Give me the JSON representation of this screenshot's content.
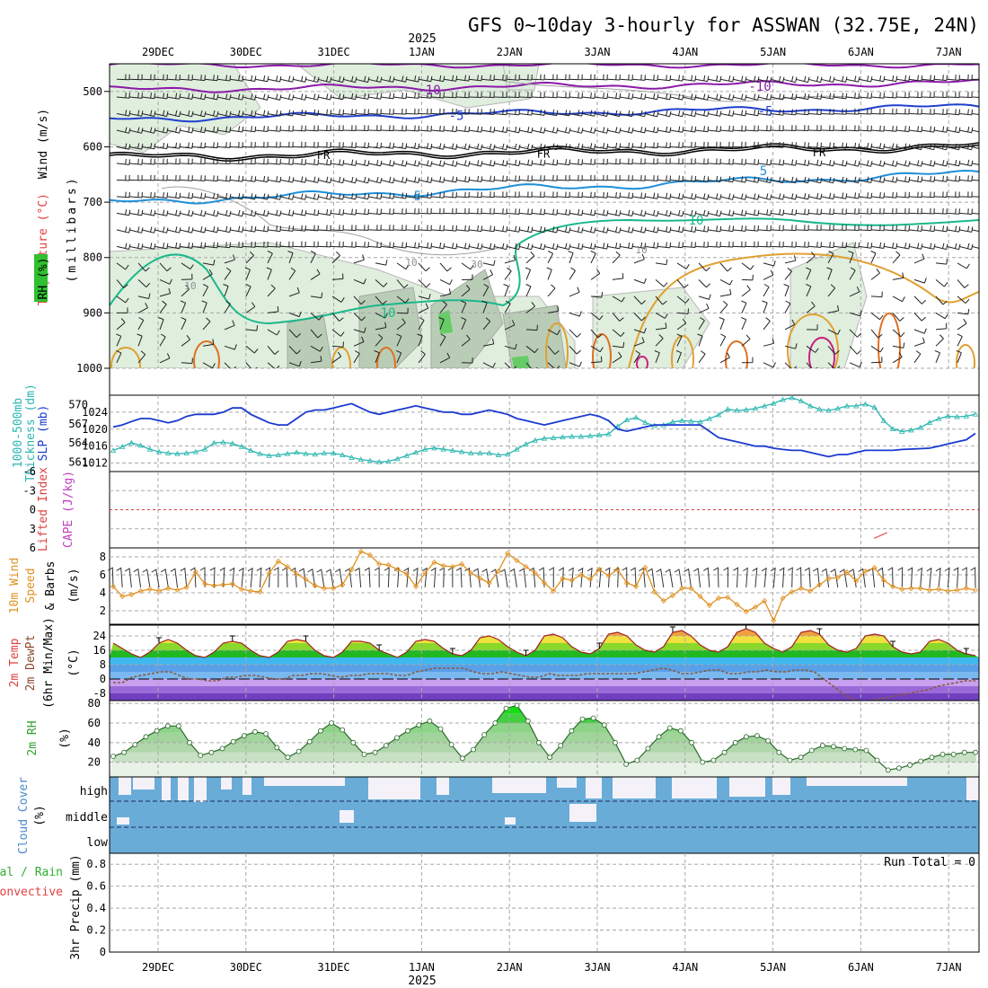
{
  "title": "GFS 0~10day 3-hourly for ASSWAN (32.75E, 24N)",
  "year": "2025",
  "date_labels": [
    "29DEC",
    "30DEC",
    "31DEC",
    "1JAN",
    "2JAN",
    "3JAN",
    "4JAN",
    "5JAN",
    "6JAN",
    "7JAN"
  ],
  "colors": {
    "temp_m10": "#8a1aa8",
    "temp_m5": "#1f3fcf",
    "temp_fr": "#000000",
    "temp_p5": "#1f8fd8",
    "temp_p10": "#1ab88a",
    "temp_warm": "#e0a030",
    "slp": "#1a3ad0",
    "thickness": "#2ab6b0",
    "wind10": "#e09020",
    "rh2m": "#30a030",
    "cloud": "#6aacd8",
    "li_zero": "#e04040",
    "cape": "#c040c0"
  },
  "chart_data": [
    {
      "id": "upper_air",
      "type": "contour",
      "ylabel": [
        "Wind (m/s)",
        "Temperature (°C)",
        "RH (%)",
        "(millibars)"
      ],
      "y_ticks": [
        500,
        600,
        700,
        800,
        900,
        1000
      ],
      "ylim": [
        450,
        1000
      ],
      "temp_contours": [
        {
          "label": "-10",
          "level_mb": 497
        },
        {
          "label": "-5",
          "level_mb": 550
        },
        {
          "label": "FR",
          "level_mb": 612
        },
        {
          "label": "5",
          "level_mb": 690
        },
        {
          "label": "10",
          "level_mb": 760
        }
      ],
      "rh_labels": [
        "10",
        "10",
        "30",
        "10"
      ]
    },
    {
      "id": "slp_thickness",
      "type": "line",
      "ylabel": [
        "Thickness (dm)",
        "1000-500mb",
        "SLP (mb)"
      ],
      "left_ticks": [
        561,
        564,
        567,
        570
      ],
      "right_ticks": [
        1012,
        1016,
        1020,
        1024
      ],
      "slp_range": [
        1010,
        1028
      ],
      "thickness_range": [
        559.5,
        571.5
      ],
      "slp": [
        1020.5,
        1021,
        1021.8,
        1022.5,
        1022.5,
        1022,
        1021.5,
        1022,
        1023,
        1023.5,
        1023.5,
        1023.5,
        1024,
        1025,
        1025,
        1023.5,
        1022.5,
        1021.5,
        1021,
        1021,
        1022.5,
        1024,
        1024.5,
        1024.5,
        1025,
        1025.5,
        1026,
        1025,
        1024,
        1023.5,
        1024,
        1024.5,
        1025,
        1025.5,
        1025,
        1024.5,
        1024,
        1024,
        1023.5,
        1023.5,
        1024,
        1024.5,
        1024,
        1023.5,
        1022.5,
        1022,
        1021.5,
        1021,
        1021.5,
        1022,
        1022.5,
        1023,
        1023.5,
        1023,
        1022,
        1020,
        1019.5,
        1020,
        1020.5,
        1021,
        1021,
        1021,
        1021,
        1021,
        1021,
        1019.5,
        1018,
        1017.5,
        1017,
        1016.5,
        1016,
        1016,
        1015.5,
        1015.2,
        1015,
        1015,
        1014.5,
        1014,
        1013.5,
        1014,
        1014,
        1014.5,
        1015,
        1015,
        1015,
        1015,
        1015.2,
        1015.3,
        1015.4,
        1015.5,
        1016,
        1016.5,
        1017,
        1017.5,
        1019
      ],
      "thickness": [
        562.8,
        563.4,
        564,
        563.6,
        563,
        562.6,
        562.4,
        562.3,
        562.4,
        562.6,
        563,
        564,
        564.1,
        563.9,
        563.4,
        562.8,
        562.3,
        562,
        562.1,
        562.3,
        562.5,
        562.3,
        562.2,
        562.4,
        562.4,
        562.1,
        561.7,
        561.4,
        561.2,
        561,
        561.1,
        561.5,
        562,
        562.5,
        563,
        563.2,
        563,
        562.8,
        562.6,
        562.4,
        562.4,
        562.4,
        562.1,
        562.2,
        563,
        563.8,
        564.4,
        564.7,
        564.8,
        564.9,
        565,
        565,
        565.1,
        565.2,
        565.4,
        566.6,
        567.6,
        568,
        567.2,
        566.7,
        566.8,
        567.3,
        567.5,
        567.4,
        567.3,
        567.8,
        568.4,
        569.3,
        569.1,
        569.2,
        569.4,
        569.8,
        570.2,
        570.8,
        571.1,
        570.6,
        569.8,
        569.3,
        569.1,
        569.4,
        569.8,
        569.8,
        570.1,
        569.6,
        567.5,
        566.2,
        565.8,
        566,
        566.4,
        567.2,
        567.8,
        568.2,
        568.1,
        568.2,
        568.5
      ]
    },
    {
      "id": "lifted_cape",
      "type": "line",
      "ylabel": [
        "Lifted Index",
        "CAPE (J/kg)"
      ],
      "ticks": [
        "6",
        "3",
        "0",
        "-3",
        "-6"
      ],
      "li_range": [
        -6,
        6
      ],
      "cape_segment": {
        "x_days": [
          8.15,
          8.3
        ],
        "values": [
          4.5,
          3.6
        ]
      }
    },
    {
      "id": "wind10m",
      "type": "line",
      "ylabel": [
        "10m Wind",
        "Speed",
        "& Barbs",
        "(m/s)"
      ],
      "ticks": [
        2,
        4,
        6,
        8
      ],
      "ylim": [
        0.5,
        9
      ],
      "speed": [
        4.7,
        3.6,
        3.8,
        4.2,
        4.4,
        4.2,
        4.5,
        4.3,
        4.6,
        6.3,
        5,
        4.8,
        4.9,
        5,
        4.4,
        4.2,
        4.1,
        6.2,
        7.5,
        6.9,
        6.1,
        5.5,
        4.8,
        4.5,
        4.5,
        4.9,
        6.6,
        8.6,
        8.2,
        7.2,
        7.1,
        6.6,
        6.1,
        4.7,
        6.2,
        7.4,
        7,
        6.9,
        7.2,
        6.2,
        5.6,
        5.1,
        6.4,
        8.4,
        7.6,
        6.9,
        6.2,
        5.1,
        4.2,
        5.6,
        5.4,
        6,
        5.5,
        6.6,
        5.9,
        6.6,
        5.1,
        4.7,
        6.8,
        4.1,
        3.1,
        3.7,
        4.5,
        4.5,
        3.6,
        2.6,
        3.4,
        3.5,
        2.7,
        1.9,
        2.4,
        3.1,
        0.9,
        3.4,
        4.1,
        4.5,
        4.2,
        4.9,
        5.6,
        5.7,
        6.3,
        5.3,
        6.4,
        6.8,
        5.4,
        4.7,
        4.4,
        4.5,
        4.5,
        4.3,
        4.4,
        4.2,
        4.3,
        4.5,
        4.3
      ]
    },
    {
      "id": "temp2m",
      "type": "area",
      "ylabel": [
        "2m Temp",
        "2m DewPt",
        "(6hr Min/Max)",
        "(°C)"
      ],
      "ticks": [
        "24",
        "16",
        "8",
        "0",
        "-8"
      ],
      "ylim": [
        -12,
        30
      ],
      "temp": [
        20,
        17,
        14,
        12,
        15,
        20,
        22,
        20,
        16,
        13,
        12,
        15,
        20,
        21,
        20,
        16,
        13,
        12,
        15,
        21,
        22,
        21,
        16,
        13,
        12,
        15,
        21,
        21,
        20,
        16,
        14,
        12,
        15,
        21,
        22,
        21,
        17,
        14,
        13,
        16,
        23,
        24,
        22,
        18,
        15,
        13,
        16,
        24,
        25,
        23,
        18,
        15,
        14,
        17,
        25,
        26,
        24,
        19,
        16,
        15,
        18,
        26,
        27,
        24,
        19,
        16,
        15,
        18,
        26,
        28,
        26,
        20,
        17,
        15,
        18,
        26,
        27,
        25,
        19,
        16,
        15,
        17,
        24,
        25,
        24,
        18,
        15,
        14,
        15,
        21,
        22,
        20,
        16,
        14,
        13
      ],
      "dewpt": [
        -2,
        -2,
        1,
        2,
        3,
        4,
        4,
        2,
        0,
        0,
        -1,
        -1,
        1,
        1,
        2,
        2,
        1,
        0,
        0,
        2,
        2,
        3,
        3,
        2,
        1,
        2,
        2,
        3,
        3,
        3,
        2,
        2,
        4,
        5,
        6,
        6,
        6,
        6,
        4,
        3,
        3,
        4,
        3,
        2,
        1,
        1,
        3,
        2,
        2,
        2,
        3,
        3,
        3,
        3,
        3,
        3,
        4,
        5,
        6,
        5,
        3,
        3,
        4,
        5,
        5,
        3,
        3,
        4,
        4,
        5,
        4,
        4,
        5,
        5,
        4,
        0,
        -4,
        -8,
        -11,
        -13,
        -12,
        -11,
        -10,
        -9,
        -8,
        -7,
        -6,
        -4,
        -3,
        -2,
        -1,
        -1
      ]
    },
    {
      "id": "rh2m",
      "type": "area",
      "ylabel": [
        "2m RH",
        "(%)"
      ],
      "ticks": [
        20,
        40,
        60,
        80
      ],
      "ylim": [
        5,
        82
      ],
      "values": [
        26,
        30,
        38,
        46,
        52,
        57,
        57,
        40,
        27,
        30,
        34,
        41,
        47,
        51,
        49,
        35,
        25,
        31,
        41,
        52,
        60,
        53,
        40,
        28,
        30,
        37,
        45,
        52,
        58,
        62,
        54,
        38,
        24,
        33,
        48,
        60,
        75,
        78,
        62,
        40,
        25,
        37,
        52,
        64,
        65,
        58,
        40,
        18,
        22,
        34,
        46,
        55,
        52,
        40,
        20,
        22,
        30,
        40,
        46,
        47,
        42,
        30,
        22,
        25,
        32,
        37,
        36,
        34,
        33,
        32,
        22,
        12,
        14,
        17,
        21,
        25,
        28,
        28,
        30,
        30
      ]
    },
    {
      "id": "cloud",
      "type": "bar",
      "ylabel": [
        "Cloud Cover",
        "(%)"
      ],
      "levels": [
        "high",
        "middle",
        "low"
      ]
    },
    {
      "id": "precip",
      "type": "bar",
      "ylabel": [
        "Total / Rain",
        "Convective",
        "3hr Precip (mm)"
      ],
      "ticks": [
        "0.8",
        "0.6",
        "0.4",
        "0.2",
        "0"
      ],
      "ylim": [
        0,
        0.9
      ],
      "run_total": "Run Total = 0",
      "values": []
    }
  ]
}
